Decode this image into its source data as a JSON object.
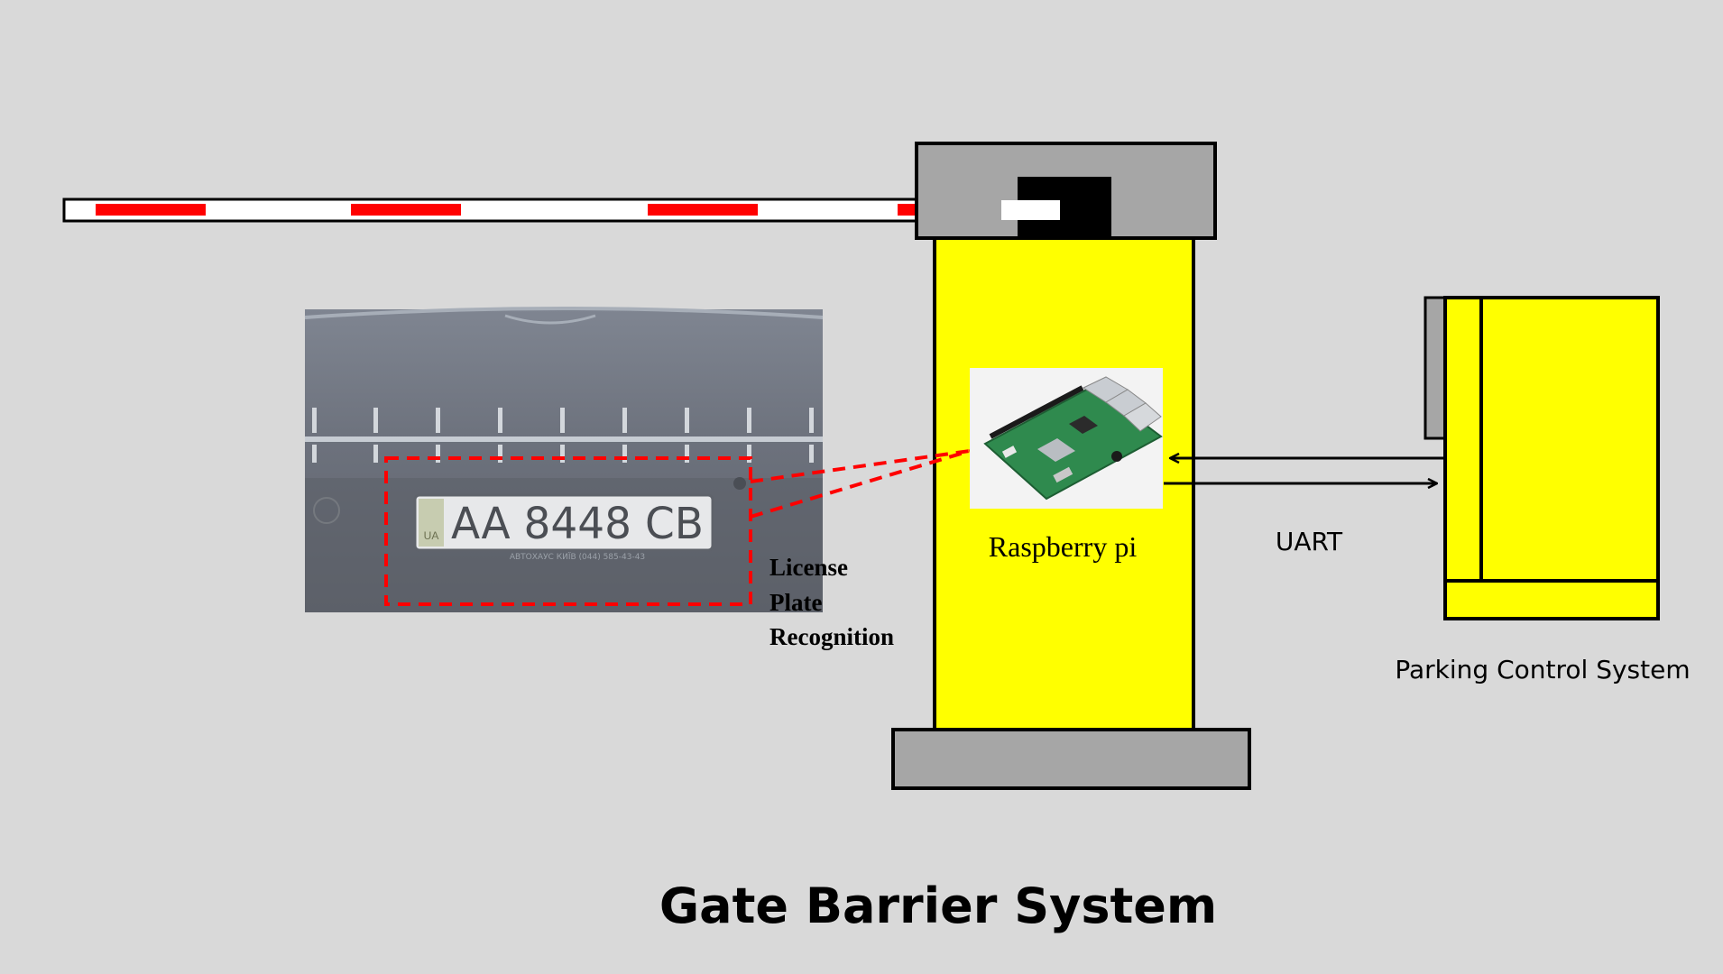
{
  "title": "Gate Barrier System",
  "labels": {
    "lpr_line1": "License",
    "lpr_line2": "Plate",
    "lpr_line3": "Recognition",
    "raspberry_pi": "Raspberry pi",
    "uart": "UART",
    "parking_control": "Parking Control System"
  },
  "license_plate": {
    "country_code": "UA",
    "number": "AA 8448 CB",
    "frame_text": "АВТОХАУС КИЇВ   (044) 585-43-43"
  },
  "colors": {
    "background": "#d9d9d9",
    "barrier_stripe": "#ff0000",
    "cabinet_yellow": "#ffff00",
    "housing_gray": "#a6a6a6",
    "dashed_red": "#ff0000",
    "pcb_green": "#2f8a4e"
  }
}
